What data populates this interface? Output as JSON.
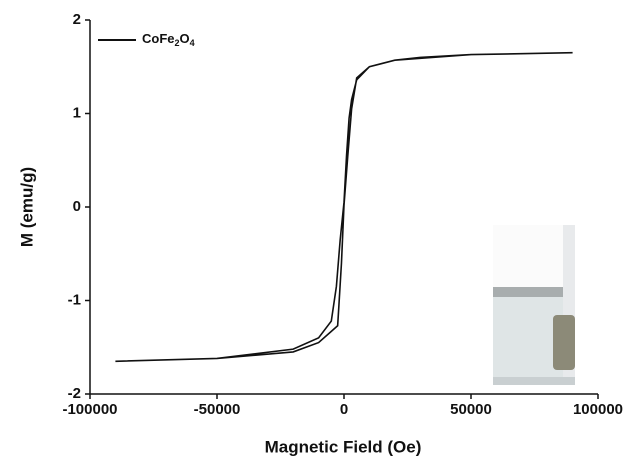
{
  "chart_data": {
    "type": "line",
    "x_label": "Magnetic Field (Oe)",
    "y_label": "M (emu/g)",
    "x": [
      90000,
      50000,
      30000,
      20000,
      10000,
      5000,
      3000,
      1500,
      0,
      -1000,
      -2000,
      -2500,
      -5000,
      -10000,
      -20000,
      -50000,
      -90000,
      -50000,
      -20000,
      -10000,
      -5000,
      -3000,
      -1500,
      0,
      1000,
      2000,
      3000,
      5000,
      10000,
      20000,
      50000,
      90000
    ],
    "series": [
      {
        "name": "CoFe2O4",
        "color": "#111111",
        "values": [
          1.65,
          1.63,
          1.6,
          1.57,
          1.5,
          1.38,
          1.05,
          0.55,
          0.02,
          -0.6,
          -1.05,
          -1.27,
          -1.33,
          -1.45,
          -1.55,
          -1.62,
          -1.65,
          -1.62,
          -1.52,
          -1.4,
          -1.22,
          -0.85,
          -0.35,
          0.05,
          0.55,
          0.95,
          1.15,
          1.36,
          1.5,
          1.57,
          1.63,
          1.65
        ]
      }
    ],
    "xlim": [
      -100000,
      100000
    ],
    "xticks": [
      -100000,
      -50000,
      0,
      50000,
      100000
    ],
    "ylim": [
      -2,
      2
    ],
    "yticks": [
      -2,
      -1,
      0,
      1,
      2
    ],
    "legend": "upper left"
  }
}
